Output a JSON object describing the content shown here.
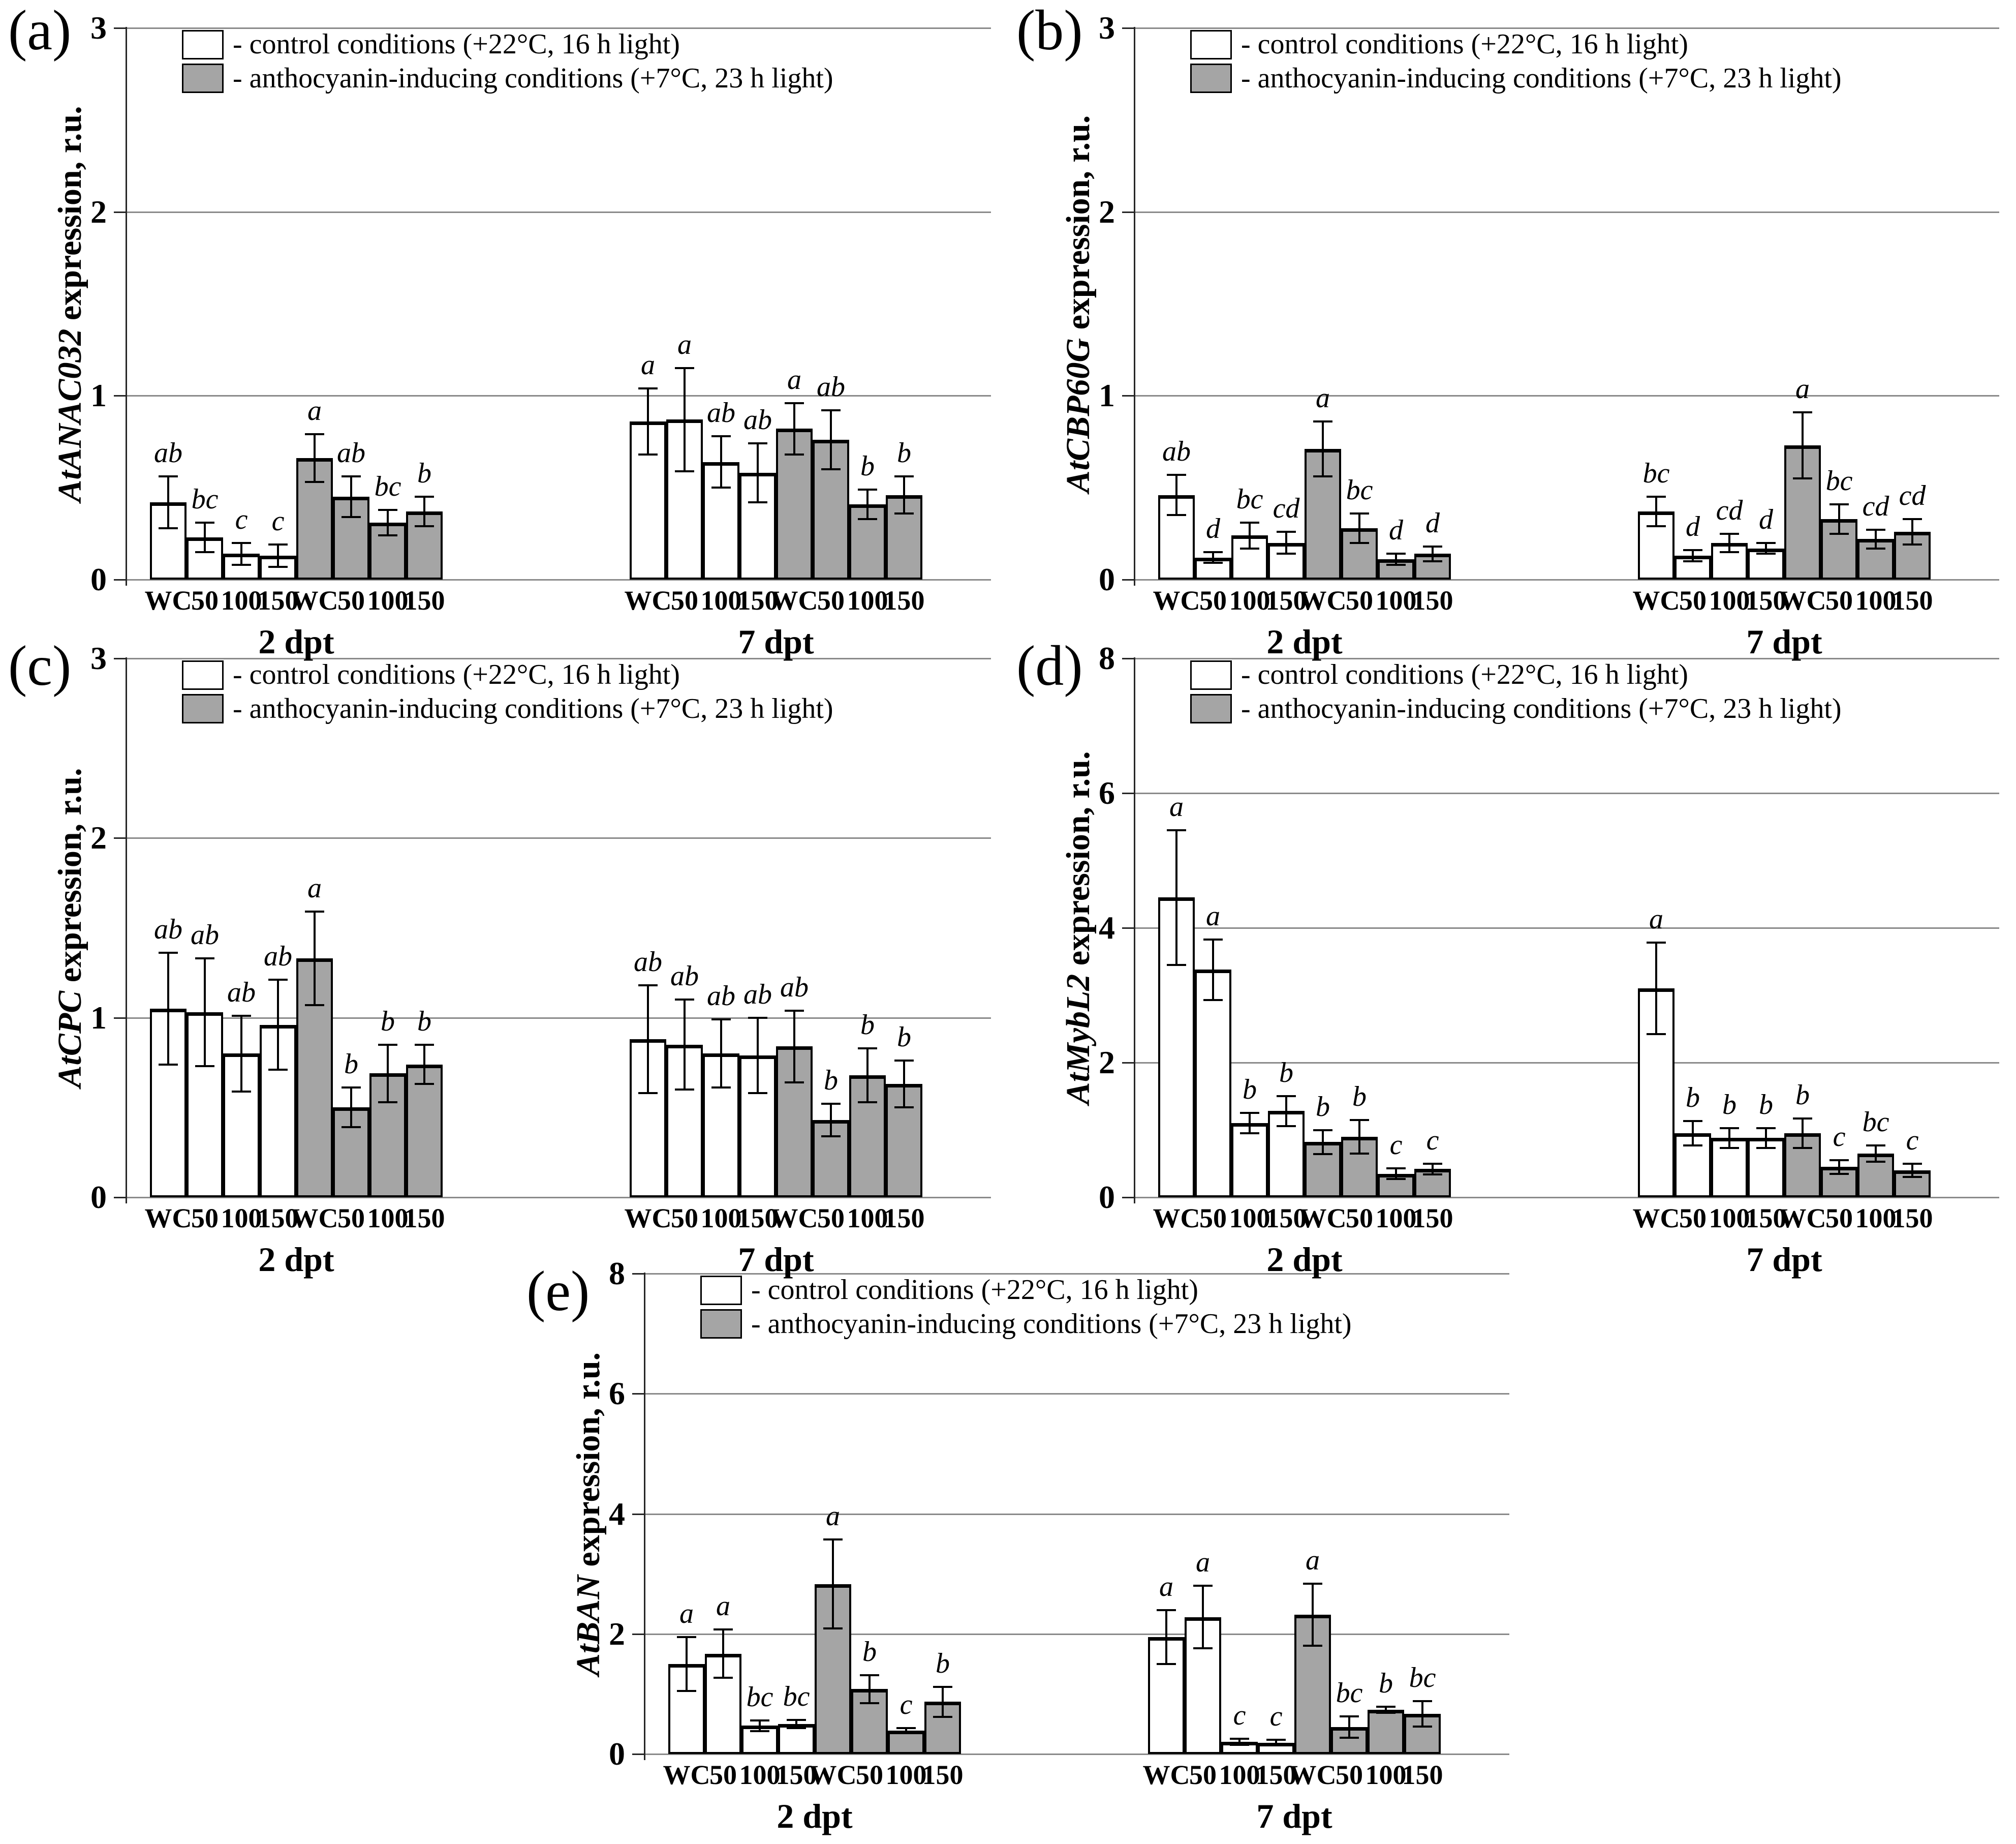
{
  "figure": {
    "description": "Gene expression bar chart figure with five panels (a-e)",
    "background": "#ffffff"
  },
  "colors": {
    "bar_white": "#ffffff",
    "bar_gray": "#a5a5a5",
    "bar_border": "#000000",
    "gridline": "#8a8a8a",
    "axis": "#262626"
  },
  "legend": {
    "entries": [
      {
        "swatch_fill": "#ffffff",
        "label": "- control conditions (+22°C, 16 h light)"
      },
      {
        "swatch_fill": "#a5a5a5",
        "label": "- anthocyanin-inducing conditions (+7°C, 23 h light)"
      }
    ]
  },
  "chart_data": [
    {
      "panel_label": "(a)",
      "type": "bar",
      "ylabel_gene": "AtANAC032",
      "ylabel_rest": " expression, r.u.",
      "ylim": [
        0,
        3
      ],
      "yticks": [
        0,
        1,
        2,
        3
      ],
      "grid": true,
      "legend_position": "top-left",
      "categories": [
        "WC",
        "50",
        "100",
        "150",
        "WC",
        "50",
        "100",
        "150"
      ],
      "groups": [
        {
          "label": "2 dpt",
          "bars": [
            {
              "cat": "WC",
              "fill": "white",
              "value": 0.42,
              "error": 0.14,
              "sig": "ab"
            },
            {
              "cat": "50",
              "fill": "white",
              "value": 0.23,
              "error": 0.08,
              "sig": "bc"
            },
            {
              "cat": "100",
              "fill": "white",
              "value": 0.14,
              "error": 0.06,
              "sig": "c"
            },
            {
              "cat": "150",
              "fill": "white",
              "value": 0.13,
              "error": 0.06,
              "sig": "c"
            },
            {
              "cat": "WC",
              "fill": "gray",
              "value": 0.66,
              "error": 0.13,
              "sig": "a"
            },
            {
              "cat": "50",
              "fill": "gray",
              "value": 0.45,
              "error": 0.11,
              "sig": "ab"
            },
            {
              "cat": "100",
              "fill": "gray",
              "value": 0.31,
              "error": 0.07,
              "sig": "bc"
            },
            {
              "cat": "150",
              "fill": "gray",
              "value": 0.37,
              "error": 0.08,
              "sig": "b"
            }
          ]
        },
        {
          "label": "7 dpt",
          "bars": [
            {
              "cat": "WC",
              "fill": "white",
              "value": 0.86,
              "error": 0.18,
              "sig": "a"
            },
            {
              "cat": "50",
              "fill": "white",
              "value": 0.87,
              "error": 0.28,
              "sig": "a"
            },
            {
              "cat": "100",
              "fill": "white",
              "value": 0.64,
              "error": 0.14,
              "sig": "ab"
            },
            {
              "cat": "150",
              "fill": "white",
              "value": 0.58,
              "error": 0.16,
              "sig": "ab"
            },
            {
              "cat": "WC",
              "fill": "gray",
              "value": 0.82,
              "error": 0.14,
              "sig": "a"
            },
            {
              "cat": "50",
              "fill": "gray",
              "value": 0.76,
              "error": 0.16,
              "sig": "ab"
            },
            {
              "cat": "100",
              "fill": "gray",
              "value": 0.41,
              "error": 0.08,
              "sig": "b"
            },
            {
              "cat": "150",
              "fill": "gray",
              "value": 0.46,
              "error": 0.1,
              "sig": "b"
            }
          ]
        }
      ]
    },
    {
      "panel_label": "(b)",
      "type": "bar",
      "ylabel_gene": "AtCBP60G",
      "ylabel_rest": " expression, r.u.",
      "ylim": [
        0,
        3
      ],
      "yticks": [
        0,
        1,
        2,
        3
      ],
      "grid": true,
      "legend_position": "top-left",
      "categories": [
        "WC",
        "50",
        "100",
        "150",
        "WC",
        "50",
        "100",
        "150"
      ],
      "groups": [
        {
          "label": "2 dpt",
          "bars": [
            {
              "cat": "WC",
              "fill": "white",
              "value": 0.46,
              "error": 0.11,
              "sig": "ab"
            },
            {
              "cat": "50",
              "fill": "white",
              "value": 0.12,
              "error": 0.03,
              "sig": "d"
            },
            {
              "cat": "100",
              "fill": "white",
              "value": 0.24,
              "error": 0.07,
              "sig": "bc"
            },
            {
              "cat": "150",
              "fill": "white",
              "value": 0.2,
              "error": 0.06,
              "sig": "cd"
            },
            {
              "cat": "WC",
              "fill": "gray",
              "value": 0.71,
              "error": 0.15,
              "sig": "a"
            },
            {
              "cat": "50",
              "fill": "gray",
              "value": 0.28,
              "error": 0.08,
              "sig": "bc"
            },
            {
              "cat": "100",
              "fill": "gray",
              "value": 0.11,
              "error": 0.03,
              "sig": "d"
            },
            {
              "cat": "150",
              "fill": "gray",
              "value": 0.14,
              "error": 0.04,
              "sig": "d"
            }
          ]
        },
        {
          "label": "7 dpt",
          "bars": [
            {
              "cat": "WC",
              "fill": "white",
              "value": 0.37,
              "error": 0.08,
              "sig": "bc"
            },
            {
              "cat": "50",
              "fill": "white",
              "value": 0.13,
              "error": 0.03,
              "sig": "d"
            },
            {
              "cat": "100",
              "fill": "white",
              "value": 0.2,
              "error": 0.05,
              "sig": "cd"
            },
            {
              "cat": "150",
              "fill": "white",
              "value": 0.17,
              "error": 0.03,
              "sig": "d"
            },
            {
              "cat": "WC",
              "fill": "gray",
              "value": 0.73,
              "error": 0.18,
              "sig": "a"
            },
            {
              "cat": "50",
              "fill": "gray",
              "value": 0.33,
              "error": 0.08,
              "sig": "bc"
            },
            {
              "cat": "100",
              "fill": "gray",
              "value": 0.22,
              "error": 0.05,
              "sig": "cd"
            },
            {
              "cat": "150",
              "fill": "gray",
              "value": 0.26,
              "error": 0.07,
              "sig": "cd"
            }
          ]
        }
      ]
    },
    {
      "panel_label": "(c)",
      "type": "bar",
      "ylabel_gene": "AtCPC",
      "ylabel_rest": " expression, r.u.",
      "ylim": [
        0,
        3
      ],
      "yticks": [
        0,
        1,
        2,
        3
      ],
      "grid": true,
      "legend_position": "top-left",
      "categories": [
        "WC",
        "50",
        "100",
        "150",
        "WC",
        "50",
        "100",
        "150"
      ],
      "groups": [
        {
          "label": "2 dpt",
          "bars": [
            {
              "cat": "WC",
              "fill": "white",
              "value": 1.05,
              "error": 0.31,
              "sig": "ab"
            },
            {
              "cat": "50",
              "fill": "white",
              "value": 1.03,
              "error": 0.3,
              "sig": "ab"
            },
            {
              "cat": "100",
              "fill": "white",
              "value": 0.8,
              "error": 0.21,
              "sig": "ab"
            },
            {
              "cat": "150",
              "fill": "white",
              "value": 0.96,
              "error": 0.25,
              "sig": "ab"
            },
            {
              "cat": "WC",
              "fill": "gray",
              "value": 1.33,
              "error": 0.26,
              "sig": "a"
            },
            {
              "cat": "50",
              "fill": "gray",
              "value": 0.5,
              "error": 0.11,
              "sig": "b"
            },
            {
              "cat": "100",
              "fill": "gray",
              "value": 0.69,
              "error": 0.16,
              "sig": "b"
            },
            {
              "cat": "150",
              "fill": "gray",
              "value": 0.74,
              "error": 0.11,
              "sig": "b"
            }
          ]
        },
        {
          "label": "7 dpt",
          "bars": [
            {
              "cat": "WC",
              "fill": "white",
              "value": 0.88,
              "error": 0.3,
              "sig": "ab"
            },
            {
              "cat": "50",
              "fill": "white",
              "value": 0.85,
              "error": 0.25,
              "sig": "ab"
            },
            {
              "cat": "100",
              "fill": "white",
              "value": 0.8,
              "error": 0.19,
              "sig": "ab"
            },
            {
              "cat": "150",
              "fill": "white",
              "value": 0.79,
              "error": 0.21,
              "sig": "ab"
            },
            {
              "cat": "WC",
              "fill": "gray",
              "value": 0.84,
              "error": 0.2,
              "sig": "ab"
            },
            {
              "cat": "50",
              "fill": "gray",
              "value": 0.43,
              "error": 0.09,
              "sig": "b"
            },
            {
              "cat": "100",
              "fill": "gray",
              "value": 0.68,
              "error": 0.15,
              "sig": "b"
            },
            {
              "cat": "150",
              "fill": "gray",
              "value": 0.63,
              "error": 0.13,
              "sig": "b"
            }
          ]
        }
      ]
    },
    {
      "panel_label": "(d)",
      "type": "bar",
      "ylabel_gene": "AtMybL2",
      "ylabel_rest": " expression, r.u.",
      "ylim": [
        0,
        8
      ],
      "yticks": [
        0,
        2,
        4,
        6,
        8
      ],
      "grid": true,
      "legend_position": "top-left",
      "categories": [
        "WC",
        "50",
        "100",
        "150",
        "WC",
        "50",
        "100",
        "150"
      ],
      "groups": [
        {
          "label": "2 dpt",
          "bars": [
            {
              "cat": "WC",
              "fill": "white",
              "value": 4.45,
              "error": 1.0,
              "sig": "a"
            },
            {
              "cat": "50",
              "fill": "white",
              "value": 3.38,
              "error": 0.45,
              "sig": "a"
            },
            {
              "cat": "100",
              "fill": "white",
              "value": 1.1,
              "error": 0.15,
              "sig": "b"
            },
            {
              "cat": "150",
              "fill": "white",
              "value": 1.28,
              "error": 0.22,
              "sig": "b"
            },
            {
              "cat": "WC",
              "fill": "gray",
              "value": 0.82,
              "error": 0.18,
              "sig": "b"
            },
            {
              "cat": "50",
              "fill": "gray",
              "value": 0.9,
              "error": 0.25,
              "sig": "b"
            },
            {
              "cat": "100",
              "fill": "gray",
              "value": 0.35,
              "error": 0.08,
              "sig": "c"
            },
            {
              "cat": "150",
              "fill": "gray",
              "value": 0.42,
              "error": 0.08,
              "sig": "c"
            }
          ]
        },
        {
          "label": "7 dpt",
          "bars": [
            {
              "cat": "WC",
              "fill": "white",
              "value": 3.1,
              "error": 0.68,
              "sig": "a"
            },
            {
              "cat": "50",
              "fill": "white",
              "value": 0.95,
              "error": 0.18,
              "sig": "b"
            },
            {
              "cat": "100",
              "fill": "white",
              "value": 0.88,
              "error": 0.15,
              "sig": "b"
            },
            {
              "cat": "150",
              "fill": "white",
              "value": 0.88,
              "error": 0.15,
              "sig": "b"
            },
            {
              "cat": "WC",
              "fill": "gray",
              "value": 0.95,
              "error": 0.22,
              "sig": "b"
            },
            {
              "cat": "50",
              "fill": "gray",
              "value": 0.45,
              "error": 0.1,
              "sig": "c"
            },
            {
              "cat": "100",
              "fill": "gray",
              "value": 0.65,
              "error": 0.12,
              "sig": "bc"
            },
            {
              "cat": "150",
              "fill": "gray",
              "value": 0.4,
              "error": 0.1,
              "sig": "c"
            }
          ]
        }
      ]
    },
    {
      "panel_label": "(e)",
      "type": "bar",
      "ylabel_gene": "AtBAN",
      "ylabel_rest": " expression, r.u.",
      "ylim": [
        0,
        8
      ],
      "yticks": [
        0,
        2,
        4,
        6,
        8
      ],
      "grid": true,
      "legend_position": "top-left",
      "categories": [
        "WC",
        "50",
        "100",
        "150",
        "WC",
        "50",
        "100",
        "150"
      ],
      "groups": [
        {
          "label": "2 dpt",
          "bars": [
            {
              "cat": "WC",
              "fill": "white",
              "value": 1.5,
              "error": 0.45,
              "sig": "a"
            },
            {
              "cat": "50",
              "fill": "white",
              "value": 1.67,
              "error": 0.4,
              "sig": "a"
            },
            {
              "cat": "100",
              "fill": "white",
              "value": 0.47,
              "error": 0.09,
              "sig": "bc"
            },
            {
              "cat": "150",
              "fill": "white",
              "value": 0.5,
              "error": 0.07,
              "sig": "bc"
            },
            {
              "cat": "WC",
              "fill": "gray",
              "value": 2.83,
              "error": 0.74,
              "sig": "a"
            },
            {
              "cat": "50",
              "fill": "gray",
              "value": 1.08,
              "error": 0.23,
              "sig": "b"
            },
            {
              "cat": "100",
              "fill": "gray",
              "value": 0.39,
              "error": 0.04,
              "sig": "c"
            },
            {
              "cat": "150",
              "fill": "gray",
              "value": 0.87,
              "error": 0.25,
              "sig": "b"
            }
          ]
        },
        {
          "label": "7 dpt",
          "bars": [
            {
              "cat": "WC",
              "fill": "white",
              "value": 1.95,
              "error": 0.45,
              "sig": "a"
            },
            {
              "cat": "50",
              "fill": "white",
              "value": 2.28,
              "error": 0.52,
              "sig": "a"
            },
            {
              "cat": "100",
              "fill": "white",
              "value": 0.2,
              "error": 0.05,
              "sig": "c"
            },
            {
              "cat": "150",
              "fill": "white",
              "value": 0.19,
              "error": 0.05,
              "sig": "c"
            },
            {
              "cat": "WC",
              "fill": "gray",
              "value": 2.32,
              "error": 0.52,
              "sig": "a"
            },
            {
              "cat": "50",
              "fill": "gray",
              "value": 0.45,
              "error": 0.18,
              "sig": "bc"
            },
            {
              "cat": "100",
              "fill": "gray",
              "value": 0.74,
              "error": 0.05,
              "sig": "b"
            },
            {
              "cat": "150",
              "fill": "gray",
              "value": 0.67,
              "error": 0.21,
              "sig": "bc"
            }
          ]
        }
      ]
    }
  ]
}
